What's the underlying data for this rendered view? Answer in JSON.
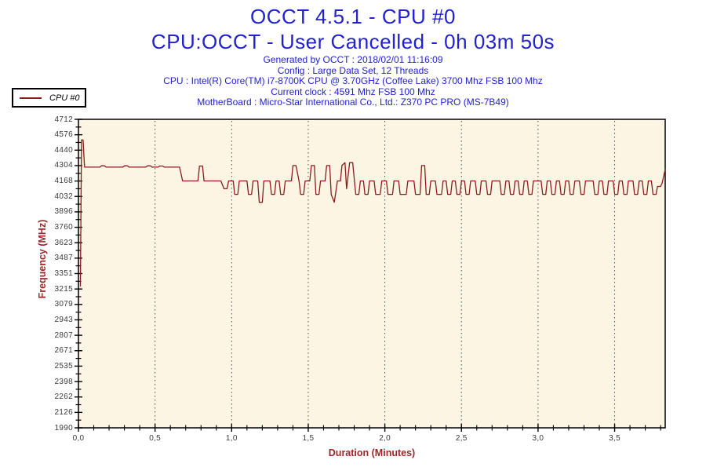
{
  "title": {
    "line1": "OCCT 4.5.1 - CPU #0",
    "line2": "CPU:OCCT - User Cancelled - 0h 03m 50s"
  },
  "info_lines": [
    "Generated by OCCT : 2018/02/01 11:16:09",
    "Config : Large Data Set, 12 Threads",
    "CPU : Intel(R) Core(TM) i7-8700K CPU @ 3.70GHz (Coffee Lake) 3700 Mhz FSB 100 Mhz",
    "Current clock : 4591 Mhz FSB 100 Mhz",
    "MotherBoard : Micro-Star International Co., Ltd.: Z370 PC PRO (MS-7B49)"
  ],
  "legend": {
    "label": "CPU #0"
  },
  "colors": {
    "title_blue": "#2222cc",
    "info_blue": "#2222cc",
    "series_red": "#8e1b1b",
    "axis_title_red": "#9c2628",
    "tick_label": "#3a3a3a",
    "plot_bg": "#fdf5e4",
    "grid": "#4a4a4a",
    "axis_line": "#000000"
  },
  "chart_data": {
    "type": "line",
    "title": "OCCT 4.5.1 - CPU #0",
    "subtitle": "CPU:OCCT - User Cancelled - 0h 03m 50s",
    "xlabel": "Duration (Minutes)",
    "ylabel": "Frequency (MHz)",
    "xlim": [
      0,
      3.83
    ],
    "ylim": [
      1990,
      4712
    ],
    "grid": "vertical dotted at x majors",
    "legend_position": "top-left outside plot",
    "x_major_ticks": [
      {
        "v": 0.0,
        "label": "0,0"
      },
      {
        "v": 0.5,
        "label": "0,5"
      },
      {
        "v": 1.0,
        "label": "1,0"
      },
      {
        "v": 1.5,
        "label": "1,5"
      },
      {
        "v": 2.0,
        "label": "2,0"
      },
      {
        "v": 2.5,
        "label": "2,5"
      },
      {
        "v": 3.0,
        "label": "3,0"
      },
      {
        "v": 3.5,
        "label": "3,5"
      }
    ],
    "x_minor_step": 0.1,
    "y_tick_labels": [
      4712,
      4576,
      4440,
      4304,
      4168,
      4032,
      3896,
      3760,
      3623,
      3487,
      3351,
      3215,
      3079,
      2943,
      2807,
      2671,
      2535,
      2398,
      2262,
      2126,
      1990
    ],
    "grid_vertical_at": [
      0.5,
      1.0,
      1.5,
      2.0,
      2.5,
      3.0,
      3.5
    ],
    "series": [
      {
        "name": "CPU #0",
        "color": "#8e1b1b",
        "points": [
          [
            0.013,
            3240
          ],
          [
            0.02,
            4530
          ],
          [
            0.03,
            4530
          ],
          [
            0.04,
            4290
          ],
          [
            0.14,
            4290
          ],
          [
            0.15,
            4302
          ],
          [
            0.17,
            4302
          ],
          [
            0.18,
            4290
          ],
          [
            0.29,
            4290
          ],
          [
            0.3,
            4302
          ],
          [
            0.32,
            4302
          ],
          [
            0.33,
            4290
          ],
          [
            0.44,
            4290
          ],
          [
            0.45,
            4302
          ],
          [
            0.47,
            4302
          ],
          [
            0.48,
            4290
          ],
          [
            0.52,
            4290
          ],
          [
            0.53,
            4300
          ],
          [
            0.55,
            4300
          ],
          [
            0.56,
            4290
          ],
          [
            0.66,
            4290
          ],
          [
            0.68,
            4168
          ],
          [
            0.78,
            4168
          ],
          [
            0.79,
            4300
          ],
          [
            0.81,
            4300
          ],
          [
            0.82,
            4168
          ],
          [
            0.93,
            4168
          ],
          [
            0.95,
            4100
          ],
          [
            0.97,
            4100
          ],
          [
            0.98,
            4168
          ],
          [
            1.01,
            4168
          ],
          [
            1.02,
            4050
          ],
          [
            1.04,
            4050
          ],
          [
            1.05,
            4168
          ],
          [
            1.1,
            4168
          ],
          [
            1.11,
            4050
          ],
          [
            1.13,
            4050
          ],
          [
            1.14,
            4168
          ],
          [
            1.17,
            4168
          ],
          [
            1.18,
            3980
          ],
          [
            1.2,
            3980
          ],
          [
            1.21,
            4168
          ],
          [
            1.25,
            4168
          ],
          [
            1.26,
            4050
          ],
          [
            1.28,
            4050
          ],
          [
            1.29,
            4168
          ],
          [
            1.31,
            4168
          ],
          [
            1.32,
            4050
          ],
          [
            1.34,
            4050
          ],
          [
            1.35,
            4168
          ],
          [
            1.39,
            4168
          ],
          [
            1.4,
            4304
          ],
          [
            1.42,
            4304
          ],
          [
            1.44,
            4168
          ],
          [
            1.45,
            4050
          ],
          [
            1.47,
            4050
          ],
          [
            1.48,
            4168
          ],
          [
            1.51,
            4168
          ],
          [
            1.52,
            4304
          ],
          [
            1.54,
            4304
          ],
          [
            1.55,
            4050
          ],
          [
            1.57,
            4050
          ],
          [
            1.58,
            4168
          ],
          [
            1.61,
            4168
          ],
          [
            1.62,
            4304
          ],
          [
            1.64,
            4304
          ],
          [
            1.65,
            4050
          ],
          [
            1.67,
            3980
          ],
          [
            1.69,
            4168
          ],
          [
            1.71,
            4168
          ],
          [
            1.72,
            4304
          ],
          [
            1.74,
            4330
          ],
          [
            1.75,
            4100
          ],
          [
            1.77,
            4330
          ],
          [
            1.79,
            4330
          ],
          [
            1.81,
            4050
          ],
          [
            1.83,
            4050
          ],
          [
            1.84,
            4168
          ],
          [
            1.86,
            4168
          ],
          [
            1.87,
            4050
          ],
          [
            1.89,
            4050
          ],
          [
            1.9,
            4168
          ],
          [
            1.93,
            4168
          ],
          [
            1.94,
            4050
          ],
          [
            1.97,
            4050
          ],
          [
            1.98,
            4168
          ],
          [
            2.01,
            4168
          ],
          [
            2.02,
            4050
          ],
          [
            2.05,
            4050
          ],
          [
            2.06,
            4168
          ],
          [
            2.09,
            4168
          ],
          [
            2.1,
            4050
          ],
          [
            2.14,
            4050
          ],
          [
            2.15,
            4168
          ],
          [
            2.19,
            4168
          ],
          [
            2.2,
            4050
          ],
          [
            2.23,
            4050
          ],
          [
            2.24,
            4304
          ],
          [
            2.26,
            4304
          ],
          [
            2.27,
            4050
          ],
          [
            2.29,
            4050
          ],
          [
            2.3,
            4168
          ],
          [
            2.33,
            4168
          ],
          [
            2.34,
            4050
          ],
          [
            2.37,
            4050
          ],
          [
            2.38,
            4168
          ],
          [
            2.4,
            4168
          ],
          [
            2.41,
            4050
          ],
          [
            2.43,
            4050
          ],
          [
            2.44,
            4168
          ],
          [
            2.46,
            4168
          ],
          [
            2.47,
            4050
          ],
          [
            2.49,
            4050
          ],
          [
            2.5,
            4168
          ],
          [
            2.52,
            4168
          ],
          [
            2.53,
            4050
          ],
          [
            2.55,
            4050
          ],
          [
            2.56,
            4168
          ],
          [
            2.59,
            4168
          ],
          [
            2.6,
            4050
          ],
          [
            2.62,
            4050
          ],
          [
            2.63,
            4168
          ],
          [
            2.66,
            4168
          ],
          [
            2.67,
            4050
          ],
          [
            2.69,
            4050
          ],
          [
            2.7,
            4168
          ],
          [
            2.75,
            4168
          ],
          [
            2.76,
            4050
          ],
          [
            2.78,
            4050
          ],
          [
            2.79,
            4168
          ],
          [
            2.81,
            4168
          ],
          [
            2.82,
            4050
          ],
          [
            2.84,
            4050
          ],
          [
            2.85,
            4168
          ],
          [
            2.87,
            4168
          ],
          [
            2.88,
            4050
          ],
          [
            2.9,
            4050
          ],
          [
            2.91,
            4168
          ],
          [
            2.93,
            4168
          ],
          [
            2.94,
            4050
          ],
          [
            2.96,
            4050
          ],
          [
            2.97,
            4168
          ],
          [
            3.02,
            4168
          ],
          [
            3.03,
            4050
          ],
          [
            3.05,
            4050
          ],
          [
            3.06,
            4168
          ],
          [
            3.08,
            4168
          ],
          [
            3.09,
            4050
          ],
          [
            3.11,
            4050
          ],
          [
            3.12,
            4168
          ],
          [
            3.14,
            4168
          ],
          [
            3.15,
            4050
          ],
          [
            3.17,
            4050
          ],
          [
            3.18,
            4168
          ],
          [
            3.2,
            4168
          ],
          [
            3.21,
            4050
          ],
          [
            3.23,
            4050
          ],
          [
            3.24,
            4168
          ],
          [
            3.27,
            4168
          ],
          [
            3.28,
            4050
          ],
          [
            3.3,
            4050
          ],
          [
            3.31,
            4168
          ],
          [
            3.36,
            4168
          ],
          [
            3.37,
            4050
          ],
          [
            3.39,
            4050
          ],
          [
            3.4,
            4168
          ],
          [
            3.42,
            4168
          ],
          [
            3.43,
            4050
          ],
          [
            3.45,
            4050
          ],
          [
            3.46,
            4168
          ],
          [
            3.49,
            4168
          ],
          [
            3.5,
            4050
          ],
          [
            3.52,
            4050
          ],
          [
            3.53,
            4168
          ],
          [
            3.55,
            4168
          ],
          [
            3.56,
            4050
          ],
          [
            3.58,
            4050
          ],
          [
            3.59,
            4168
          ],
          [
            3.62,
            4168
          ],
          [
            3.63,
            4050
          ],
          [
            3.65,
            4050
          ],
          [
            3.66,
            4168
          ],
          [
            3.68,
            4168
          ],
          [
            3.69,
            4050
          ],
          [
            3.71,
            4050
          ],
          [
            3.72,
            4168
          ],
          [
            3.74,
            4168
          ],
          [
            3.75,
            4050
          ],
          [
            3.77,
            4050
          ],
          [
            3.78,
            4120
          ],
          [
            3.8,
            4120
          ],
          [
            3.81,
            4150
          ],
          [
            3.83,
            4270
          ]
        ]
      }
    ]
  }
}
